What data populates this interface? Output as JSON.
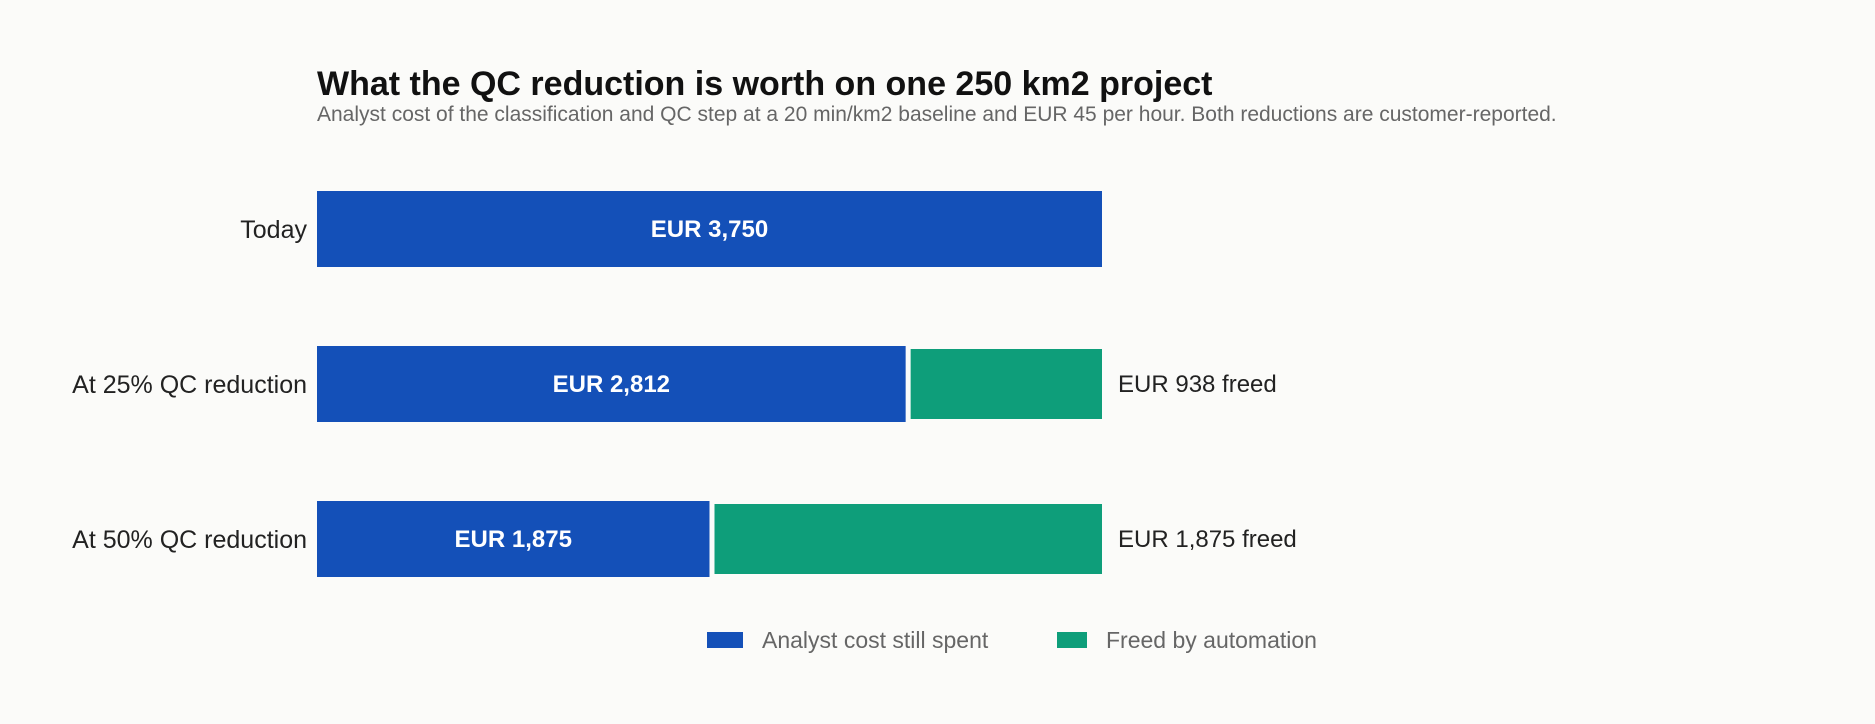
{
  "chart_data": {
    "type": "bar",
    "stacked": true,
    "orientation": "horizontal",
    "title": "What the QC reduction is worth on one 250 km2 project",
    "subtitle": "Analyst cost of the classification and QC step at a 20 min/km2 baseline and EUR 45 per hour. Both reductions are customer-reported.",
    "categories": [
      "Today",
      "At 25% QC reduction",
      "At 50% QC reduction"
    ],
    "series": [
      {
        "name": "Analyst cost still spent",
        "color": "#1450b8",
        "values": [
          3750,
          2812,
          1875
        ],
        "labels": [
          "EUR 3,750",
          "EUR 2,812",
          "EUR 1,875"
        ]
      },
      {
        "name": "Freed by automation",
        "color": "#0e9e7a",
        "values": [
          0,
          938,
          1875
        ],
        "labels": [
          "",
          "EUR 938 freed",
          "EUR 1,875 freed"
        ]
      }
    ],
    "xlim": [
      0,
      3750
    ],
    "grid": false,
    "legend": "bottom"
  }
}
